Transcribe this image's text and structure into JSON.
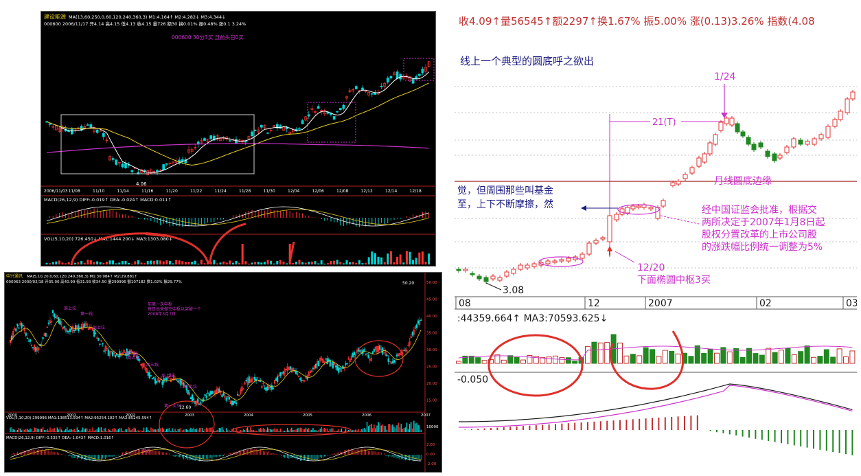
{
  "panel_a": {
    "stock_name": "建设能源",
    "ma_params": "MA(13,60,250,0,60,120,240,360,3) M1:4.164↑ M2:4.282↓ M3:4.344↓",
    "quote_line": "000600 2006/11/17 开4.14 高4.15 低4.13 收4.15 量726 额30 换0.01% 振0.48% 涨0.1 3.24%",
    "note": "000600 30分3买 且前头日0买",
    "low_label": "4.06",
    "dates": [
      "2006/11/03",
      "11/08",
      "11/10",
      "11/14",
      "11/16",
      "11/20",
      "11/22",
      "11/24",
      "11/28",
      "11/30",
      "12/04",
      "12/06",
      "12/08",
      "12/12",
      "12/14",
      "12/18"
    ],
    "macd_label": "MACD(26,12,9) DIFF:-0.019↑ DEA:-0.024↑ MACD:0.011↑",
    "vol_label": "VOL(5,10,20) 726.450↓ MA1:1444.200↓ MA3:1303.080↓"
  },
  "panel_b": {
    "stock_name": "中兴通讯",
    "ma_params": "MA(5,10,20,0,60,120,240,360,3) M1:30.984↑ M2:29.881↑",
    "quote_line": "000063 2000/02/18 开35.00 高40.99 低31.93 收34.50 量299996 额107182 换1.02% 振29.77%",
    "note_1": "前第一次中枢",
    "note_2": "每日出来做空中枢以突破一个",
    "note_3": "2008年3月7日",
    "high_label": "50.20",
    "low_label": "12.60",
    "labels": [
      "周上拉",
      "第一线",
      "周上拉",
      "第二线",
      "周上拉",
      "周三线",
      "周上拉",
      "3次上拉",
      "第一次30"
    ],
    "years": [
      "2000",
      "2001",
      "2002",
      "2003",
      "2004",
      "2005",
      "2006",
      "2007"
    ],
    "price_ticks": [
      "50.00",
      "45.00",
      "40.00",
      "35.00",
      "30.00",
      "25.00",
      "20.00",
      "15.00"
    ],
    "vol_label": "VOL(5,10,20) 299996 MA1:138513.594↑ MA2:95254.102↑ MA3:85245.594↑",
    "macd_label": "MACD(26,12,9) DIFF:-0.535↑ DEA:-1.043↑ MACD:1.016↑",
    "weekly_label": "周线",
    "macd_ticks": [
      "2.00",
      "0.00",
      "-2.00"
    ],
    "vol_tick": "10000"
  },
  "panel_c": {
    "quote_line": "收4.09↑量56545↑额2297↑换1.67% 振5.00% 涨(0.13)3.26% 指数(4.08",
    "title": "线上一个典型的圆底呼之欲出",
    "date_top": "1/24",
    "period_label": "21(T)",
    "rim_label": "月线圆底边缘",
    "left_note_1": "觉，但周围那些叫基金",
    "left_note_2": "至，上下不断摩擦，然",
    "right_note_1": "经中国证监会批准，根据交",
    "right_note_2": "两所决定于2007年1月8日起",
    "right_note_3": "股权分置改革的上市公司股",
    "right_note_4": "的涨跌幅比例统一调整为5%",
    "date_bottom": "12/20",
    "pivot_note": "下面椭圆中枢3买",
    "low_label": "3.08",
    "axis_labels": [
      "08",
      "12",
      "2007",
      "02",
      "03"
    ],
    "vol_label": ":44359.664↑ MA3:70593.625↓",
    "macd_label": "-0.050"
  },
  "colors": {
    "up": "#ff3232",
    "down": "#00d4d4",
    "magenta": "#cc33cc",
    "yellow": "#e8d020",
    "white": "#ffffff",
    "annotation": "#e0302a"
  }
}
